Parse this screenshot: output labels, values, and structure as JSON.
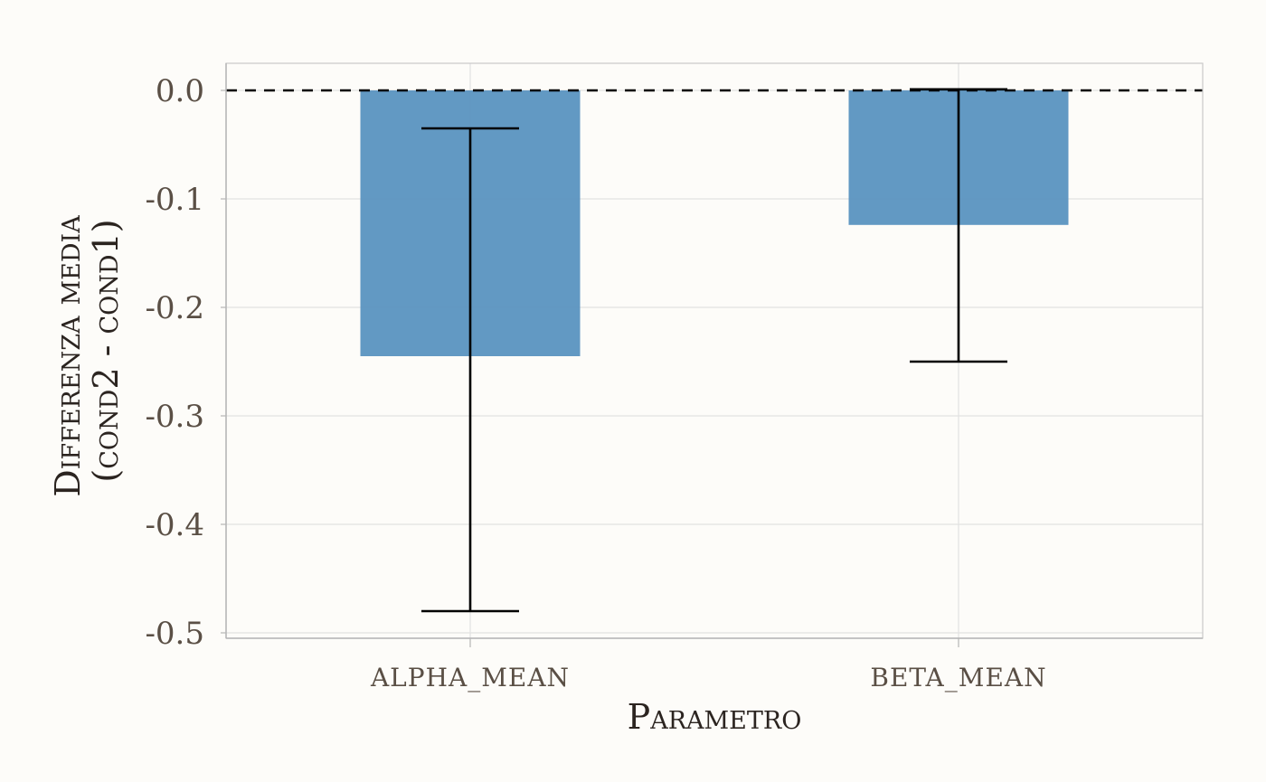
{
  "chart_data": {
    "type": "bar",
    "categories": [
      "alpha_mean",
      "beta_mean"
    ],
    "values": [
      -0.245,
      -0.124
    ],
    "error_low": [
      -0.48,
      -0.25
    ],
    "error_high": [
      -0.035,
      0.001
    ],
    "xlabel": "Parametro",
    "ylabel_lines": [
      "Differenza media",
      "(cond2 - cond1)"
    ],
    "ylim": [
      -0.505,
      0.025
    ],
    "yticks": [
      0.0,
      -0.1,
      -0.2,
      -0.3,
      -0.4,
      -0.5
    ],
    "ytick_labels": [
      "0.0",
      "-0.1",
      "-0.2",
      "-0.3",
      "-0.4",
      "-0.5"
    ],
    "reference_line": 0,
    "grid": true,
    "bar_color": "#5a93c0"
  }
}
